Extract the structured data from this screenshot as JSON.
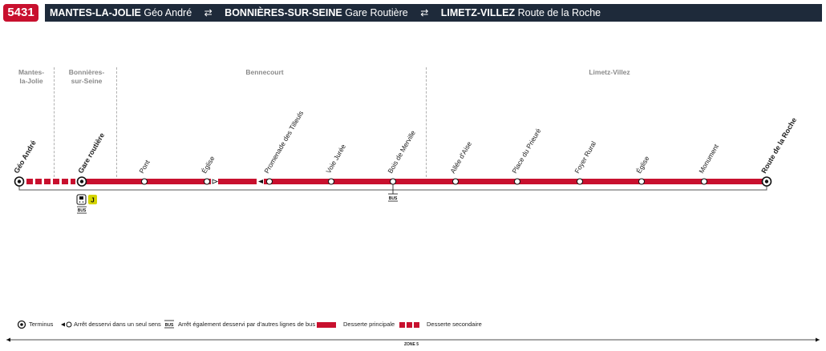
{
  "header": {
    "line_number": "5431",
    "origin_city": "MANTES-LA-JOLIE",
    "origin_stop": "Géo André",
    "via_city": "BONNIÈRES-SUR-SEINE",
    "via_stop": "Gare Routière",
    "dest_city": "LIMETZ-VILLEZ",
    "dest_stop": "Route de la Roche",
    "arrow_glyph": "⇄"
  },
  "zones": [
    {
      "label": "Mantes-\nla-Jolie"
    },
    {
      "label": "Bonnières-\nsur-Seine"
    },
    {
      "label": "Bennecourt"
    },
    {
      "label": "Limetz-Villez"
    }
  ],
  "stops": [
    {
      "name": "Géo André",
      "terminus": true
    },
    {
      "name": "Gare routière",
      "terminus": true
    },
    {
      "name": "Pont"
    },
    {
      "name": "Église"
    },
    {
      "name": "Promenade des Tilleuls"
    },
    {
      "name": "Voie Jurée"
    },
    {
      "name": "Bois de Merville"
    },
    {
      "name": "Allée d'Aise"
    },
    {
      "name": "Place du Prieuré"
    },
    {
      "name": "Foyer Rural"
    },
    {
      "name": "Église"
    },
    {
      "name": "Monument"
    },
    {
      "name": "Route de la Roche",
      "terminus": true
    }
  ],
  "connections": {
    "bus_label": "BUS",
    "train_badge": "J"
  },
  "legend": {
    "terminus": "Terminus",
    "one_way": "Arrêt desservi dans un seul sens",
    "bus_label": "BUS",
    "other_bus": "Arrêt également desservi par d'autres lignes de bus",
    "main_service": "Desserte principale",
    "secondary_service": "Desserte secondaire"
  },
  "zone_footer": "ZONE 5",
  "colors": {
    "line": "#c8102e",
    "header_bg": "#1e2a3a",
    "train_badge": "#d4d400"
  }
}
